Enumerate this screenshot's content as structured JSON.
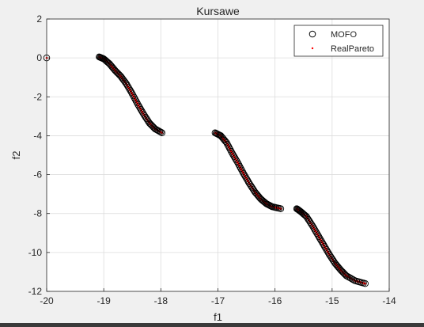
{
  "chart_data": {
    "type": "scatter",
    "title": "Kursawe",
    "xlabel": "f1",
    "ylabel": "f2",
    "xlim": [
      -20,
      -14
    ],
    "ylim": [
      -12,
      2
    ],
    "xticks": [
      "-20",
      "-19",
      "-18",
      "-17",
      "-16",
      "-15",
      "-14"
    ],
    "yticks": [
      "2",
      "0",
      "-2",
      "-4",
      "-6",
      "-8",
      "-10",
      "-12"
    ],
    "grid": true,
    "legend_position": "top-right",
    "legend": [
      "MOFO",
      "RealPareto"
    ],
    "colors": {
      "mofo": "#000000",
      "real_pareto": "#ff0000"
    },
    "isolated_point": [
      -20.0,
      0.0
    ],
    "segments": [
      {
        "points": [
          [
            -19.08,
            0.05
          ],
          [
            -19.0,
            -0.05
          ],
          [
            -18.9,
            -0.3
          ],
          [
            -18.8,
            -0.65
          ],
          [
            -18.7,
            -0.95
          ],
          [
            -18.6,
            -1.35
          ],
          [
            -18.5,
            -1.85
          ],
          [
            -18.4,
            -2.4
          ],
          [
            -18.3,
            -2.9
          ],
          [
            -18.2,
            -3.35
          ],
          [
            -18.1,
            -3.65
          ],
          [
            -17.98,
            -3.85
          ]
        ]
      },
      {
        "points": [
          [
            -17.05,
            -3.85
          ],
          [
            -16.95,
            -4.0
          ],
          [
            -16.85,
            -4.35
          ],
          [
            -16.75,
            -4.9
          ],
          [
            -16.65,
            -5.4
          ],
          [
            -16.55,
            -5.95
          ],
          [
            -16.45,
            -6.45
          ],
          [
            -16.35,
            -6.9
          ],
          [
            -16.25,
            -7.25
          ],
          [
            -16.15,
            -7.5
          ],
          [
            -16.05,
            -7.65
          ],
          [
            -15.9,
            -7.75
          ]
        ]
      },
      {
        "points": [
          [
            -15.62,
            -7.75
          ],
          [
            -15.55,
            -7.9
          ],
          [
            -15.45,
            -8.15
          ],
          [
            -15.35,
            -8.6
          ],
          [
            -15.25,
            -9.1
          ],
          [
            -15.15,
            -9.6
          ],
          [
            -15.05,
            -10.1
          ],
          [
            -14.95,
            -10.55
          ],
          [
            -14.85,
            -10.9
          ],
          [
            -14.75,
            -11.2
          ],
          [
            -14.6,
            -11.45
          ],
          [
            -14.42,
            -11.6
          ]
        ]
      }
    ]
  }
}
